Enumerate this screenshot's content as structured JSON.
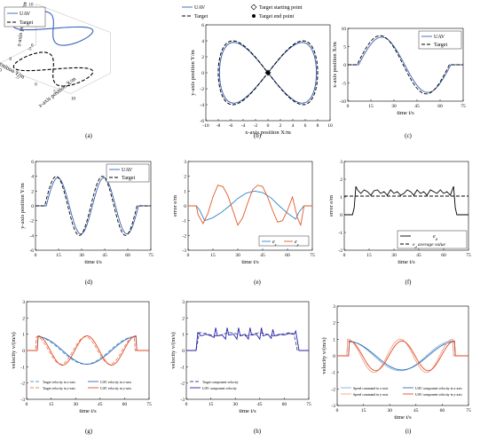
{
  "chart_data": [
    {
      "panel": "(a)",
      "type": "line3d",
      "legend": [
        "UAV",
        "Target"
      ],
      "axes": {
        "x_label": "x-axis position  X/m",
        "y_label": "y-axis position  Y/m",
        "z_label": "z-axis position  Z/m",
        "x_ticks": [
          "-10",
          "-5",
          "0",
          "5",
          "10"
        ],
        "y_ticks": [
          "-5",
          "0",
          "5"
        ],
        "z_ticks": [
          "0",
          "5",
          "10"
        ]
      },
      "series": [
        {
          "name": "UAV",
          "z": 10,
          "style": "solid",
          "color": "#3a63b8"
        },
        {
          "name": "Target",
          "z": 0,
          "style": "dashed",
          "color": "#000000"
        }
      ]
    },
    {
      "panel": "(b)",
      "type": "line",
      "legend": [
        "UAV",
        "Target",
        "Target starting point",
        "Target end point"
      ],
      "xlabel": "x-axis position  X/m",
      "ylabel": "y-axis position  Y/m",
      "xlim": [
        -10,
        10
      ],
      "ylim": [
        -6,
        6
      ],
      "xticks": [
        "-10",
        "-8",
        "-6",
        "-4",
        "-2",
        "0",
        "2",
        "4",
        "6",
        "8",
        "10"
      ],
      "yticks": [
        "-6",
        "-4",
        "-2",
        "0",
        "2",
        "4",
        "6"
      ],
      "series": [
        {
          "name": "UAV",
          "kind": "figure8",
          "A": 7.8,
          "B": 3.8,
          "color": "#3a63b8",
          "style": "solid"
        },
        {
          "name": "Target",
          "kind": "figure8",
          "A": 8.0,
          "B": 4.0,
          "color": "#000000",
          "style": "dashed"
        }
      ],
      "markers": [
        {
          "name": "Target starting point",
          "x": 0,
          "y": 0,
          "shape": "diamond"
        },
        {
          "name": "Target end point",
          "x": 0,
          "y": 0,
          "shape": "circle"
        }
      ]
    },
    {
      "panel": "(c)",
      "type": "line",
      "legend": [
        "UAV",
        "Target"
      ],
      "xlabel": "time t/s",
      "ylabel": "x-axis position  X/m",
      "xlim": [
        0,
        75
      ],
      "ylim": [
        -10,
        10
      ],
      "xticks": [
        "0",
        "15",
        "30",
        "45",
        "60",
        "75"
      ],
      "yticks": [
        "-10",
        "-5",
        "0",
        "5",
        "10"
      ],
      "series": [
        {
          "name": "UAV",
          "kind": "sin",
          "amp": 7.6,
          "omega": 0.1047,
          "t0": 7,
          "t1": 67,
          "delay": 1.5,
          "color": "#3a63b8",
          "style": "solid"
        },
        {
          "name": "Target",
          "kind": "sin",
          "amp": 8,
          "omega": 0.1047,
          "t0": 6,
          "t1": 66,
          "delay": 0,
          "color": "#000000",
          "style": "dashed"
        }
      ]
    },
    {
      "panel": "(d)",
      "type": "line",
      "legend": [
        "UAV",
        "Target"
      ],
      "xlabel": "time t/s",
      "ylabel": "y-axis position  Y/m",
      "xlim": [
        0,
        75
      ],
      "ylim": [
        -6,
        6
      ],
      "xticks": [
        "0",
        "15",
        "30",
        "45",
        "60",
        "75"
      ],
      "yticks": [
        "-6",
        "-4",
        "-2",
        "0",
        "2",
        "4",
        "6"
      ],
      "series": [
        {
          "name": "UAV",
          "kind": "sin",
          "amp": 3.8,
          "omega": 0.2094,
          "t0": 7,
          "t1": 67,
          "delay": 1.5,
          "color": "#3a63b8",
          "style": "solid"
        },
        {
          "name": "Target",
          "kind": "sin",
          "amp": 4,
          "omega": 0.2094,
          "t0": 6,
          "t1": 66,
          "delay": 0,
          "color": "#000000",
          "style": "dashed"
        }
      ]
    },
    {
      "panel": "(e)",
      "type": "line",
      "legend": [
        "e_x",
        "e_y"
      ],
      "xlabel": "time t/s",
      "ylabel": "error e/m",
      "xlim": [
        0,
        75
      ],
      "ylim": [
        -3,
        3
      ],
      "xticks": [
        "0",
        "15",
        "30",
        "45",
        "60",
        "75"
      ],
      "yticks": [
        "-3",
        "-2",
        "-1",
        "0",
        "1",
        "2",
        "3"
      ],
      "series": [
        {
          "name": "e_x",
          "x": [
            0,
            5,
            7,
            10,
            15,
            20,
            25,
            30,
            35,
            40,
            45,
            50,
            55,
            60,
            65,
            67,
            70,
            75
          ],
          "y": [
            0,
            0,
            -0.3,
            -1.0,
            -0.8,
            -0.45,
            0,
            0.5,
            0.85,
            1.0,
            0.9,
            0.55,
            0,
            -0.5,
            -0.9,
            -0.4,
            0,
            0
          ],
          "color": "#2e86c8"
        },
        {
          "name": "e_y",
          "x": [
            0,
            5,
            6,
            9,
            12,
            15,
            18,
            21,
            24,
            27,
            30,
            33,
            36,
            39,
            42,
            45,
            48,
            51,
            54,
            57,
            60,
            63,
            66,
            68,
            70,
            75
          ],
          "y": [
            0,
            0,
            -0.6,
            -1.2,
            -0.5,
            0.6,
            1.4,
            1.3,
            0.7,
            -0.3,
            -1.3,
            -0.8,
            0.2,
            1.1,
            1.4,
            1.3,
            0.6,
            -0.3,
            -1.1,
            -1.0,
            -0.3,
            0.6,
            -0.8,
            -1.3,
            0,
            0
          ],
          "color": "#e15a2b"
        }
      ]
    },
    {
      "panel": "(f)",
      "type": "line",
      "legend": [
        "e_d",
        "e_d average value"
      ],
      "xlabel": "time t/s",
      "ylabel": "error e/m",
      "xlim": [
        0,
        75
      ],
      "ylim": [
        -2,
        3
      ],
      "xticks": [
        "0",
        "15",
        "30",
        "45",
        "60",
        "75"
      ],
      "yticks": [
        "-2",
        "-1",
        "0",
        "1",
        "2",
        "3"
      ],
      "series": [
        {
          "name": "e_d",
          "x": [
            0,
            5,
            6,
            7,
            8,
            10,
            12,
            14,
            16,
            18,
            20,
            22,
            24,
            26,
            28,
            30,
            32,
            34,
            36,
            38,
            40,
            42,
            44,
            46,
            48,
            50,
            52,
            54,
            56,
            58,
            60,
            62,
            64,
            66,
            67,
            68,
            70,
            75
          ],
          "y": [
            0,
            0,
            0.4,
            1.6,
            1.4,
            1.2,
            1.4,
            1.3,
            1.1,
            1.35,
            1.4,
            1.2,
            1.3,
            1.1,
            1.4,
            1.2,
            1.3,
            1.1,
            1.2,
            1.4,
            1.3,
            1.1,
            1.4,
            1.2,
            1.3,
            1.1,
            1.4,
            1.3,
            1.2,
            1.4,
            1.2,
            1.3,
            1.1,
            1.6,
            0.4,
            0,
            0,
            0
          ],
          "color": "#000000",
          "style": "solid"
        },
        {
          "name": "e_d average value",
          "x": [
            0,
            75
          ],
          "y": [
            1.05,
            1.05
          ],
          "color": "#000000",
          "style": "dashed"
        }
      ]
    },
    {
      "panel": "(g)",
      "type": "line",
      "legend": [
        "Target velocity in x-axis",
        "UAV velocity in x-axis",
        "Target velocity in y-axis",
        "UAV velocity in y-axis"
      ],
      "xlabel": "time t/s",
      "ylabel": "velocity v/(m/s)",
      "xlim": [
        0,
        75
      ],
      "ylim": [
        -3,
        3
      ],
      "xticks": [
        "0",
        "15",
        "30",
        "45",
        "60",
        "75"
      ],
      "yticks": [
        "-3",
        "-2",
        "-1",
        "0",
        "1",
        "2",
        "3"
      ],
      "series": [
        {
          "name": "Target velocity in x-axis",
          "kind": "cos",
          "amp": 0.84,
          "omega": 0.1047,
          "t0": 6,
          "t1": 66,
          "color": "#5b9bd5",
          "style": "dashed"
        },
        {
          "name": "UAV velocity in x-axis",
          "kind": "cos",
          "amp": 0.84,
          "omega": 0.1047,
          "t0": 7,
          "t1": 67,
          "color": "#2f6fb0",
          "style": "solid"
        },
        {
          "name": "Target velocity in y-axis",
          "kind": "cos",
          "amp": 0.84,
          "omega": 0.2094,
          "t0": 6,
          "t1": 66,
          "color": "#f08060",
          "style": "dashed"
        },
        {
          "name": "UAV velocity in y-axis",
          "kind": "cos",
          "amp": 0.9,
          "omega": 0.2094,
          "t0": 7,
          "t1": 67,
          "color": "#e04a20",
          "style": "solid"
        }
      ]
    },
    {
      "panel": "(h)",
      "type": "line",
      "legend": [
        "Target component velocity",
        "UAV component velocity"
      ],
      "xlabel": "time t/s",
      "ylabel": "velocity v/(m/s)",
      "xlim": [
        0,
        75
      ],
      "ylim": [
        -3,
        3
      ],
      "xticks": [
        "0",
        "15",
        "30",
        "45",
        "60",
        "75"
      ],
      "yticks": [
        "-3",
        "-2",
        "-1",
        "0",
        "1",
        "2",
        "3"
      ],
      "series": [
        {
          "name": "Target component velocity",
          "x": [
            0,
            6,
            8,
            12,
            15,
            18,
            21,
            24,
            27,
            30,
            33,
            36,
            39,
            42,
            45,
            48,
            51,
            54,
            57,
            60,
            64,
            66,
            68,
            75
          ],
          "y": [
            0,
            0,
            1.1,
            1.05,
            0.95,
            0.9,
            0.95,
            1.05,
            1.1,
            1.05,
            0.95,
            0.9,
            0.95,
            1.05,
            1.1,
            1.05,
            0.95,
            0.9,
            0.95,
            1.05,
            1.1,
            1.0,
            0,
            0
          ],
          "color": "#4a4a8a",
          "style": "dashed"
        },
        {
          "name": "UAV component velocity",
          "x": [
            0,
            6,
            7,
            9,
            12,
            15,
            17,
            18,
            19,
            22,
            24,
            25,
            26,
            29,
            31,
            32,
            33,
            36,
            38,
            39,
            40,
            43,
            45,
            46,
            47,
            50,
            52,
            53,
            54,
            57,
            60,
            63,
            66,
            67,
            69,
            75
          ],
          "y": [
            0,
            0,
            1.1,
            0.9,
            1.0,
            0.9,
            0.8,
            1.4,
            0.9,
            0.95,
            0.7,
            1.4,
            0.95,
            1.0,
            0.7,
            1.4,
            0.9,
            1.0,
            0.7,
            1.4,
            0.95,
            1.0,
            0.7,
            1.4,
            0.9,
            1.0,
            0.75,
            1.3,
            0.9,
            1.0,
            0.95,
            1.05,
            1.0,
            1.2,
            0,
            0
          ],
          "color": "#2222aa",
          "style": "solid"
        }
      ]
    },
    {
      "panel": "(i)",
      "type": "line",
      "legend": [
        "Speed command in x-axis",
        "UAV component velocity in x-axis",
        "Speed command in y-axis",
        "UAV component velocity in y-axis"
      ],
      "xlabel": "time t/s",
      "ylabel": "velocity v/(m/s)",
      "xlim": [
        0,
        75
      ],
      "ylim": [
        -3,
        3
      ],
      "xticks": [
        "0",
        "15",
        "30",
        "45",
        "60",
        "75"
      ],
      "yticks": [
        "-3",
        "-2",
        "-1",
        "0",
        "1",
        "2",
        "3"
      ],
      "series": [
        {
          "name": "Speed command in x-axis",
          "kind": "cos",
          "amp": 0.9,
          "omega": 0.1047,
          "t0": 6,
          "t1": 66,
          "color": "#7fb3e0",
          "style": "solid"
        },
        {
          "name": "UAV component velocity in x-axis",
          "kind": "cos",
          "amp": 0.85,
          "omega": 0.1047,
          "t0": 7,
          "t1": 67,
          "color": "#2f6fb0",
          "style": "solid"
        },
        {
          "name": "Speed command in y-axis",
          "kind": "cos",
          "amp": 1.0,
          "omega": 0.2094,
          "t0": 6,
          "t1": 66,
          "color": "#f4a08a",
          "style": "solid"
        },
        {
          "name": "UAV component velocity in y-axis",
          "kind": "cos",
          "amp": 0.9,
          "omega": 0.2094,
          "t0": 7,
          "t1": 67,
          "color": "#e04a20",
          "style": "solid"
        }
      ]
    }
  ]
}
